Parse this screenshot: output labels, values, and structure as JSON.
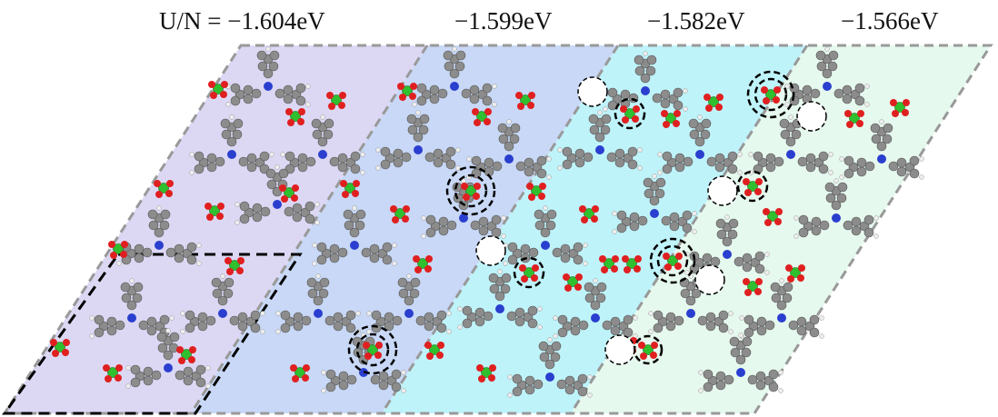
{
  "panels": [
    {
      "label": "U/N = −1.604eV"
    },
    {
      "label": "−1.599eV"
    },
    {
      "label": "−1.582eV"
    },
    {
      "label": "−1.566eV"
    }
  ]
}
